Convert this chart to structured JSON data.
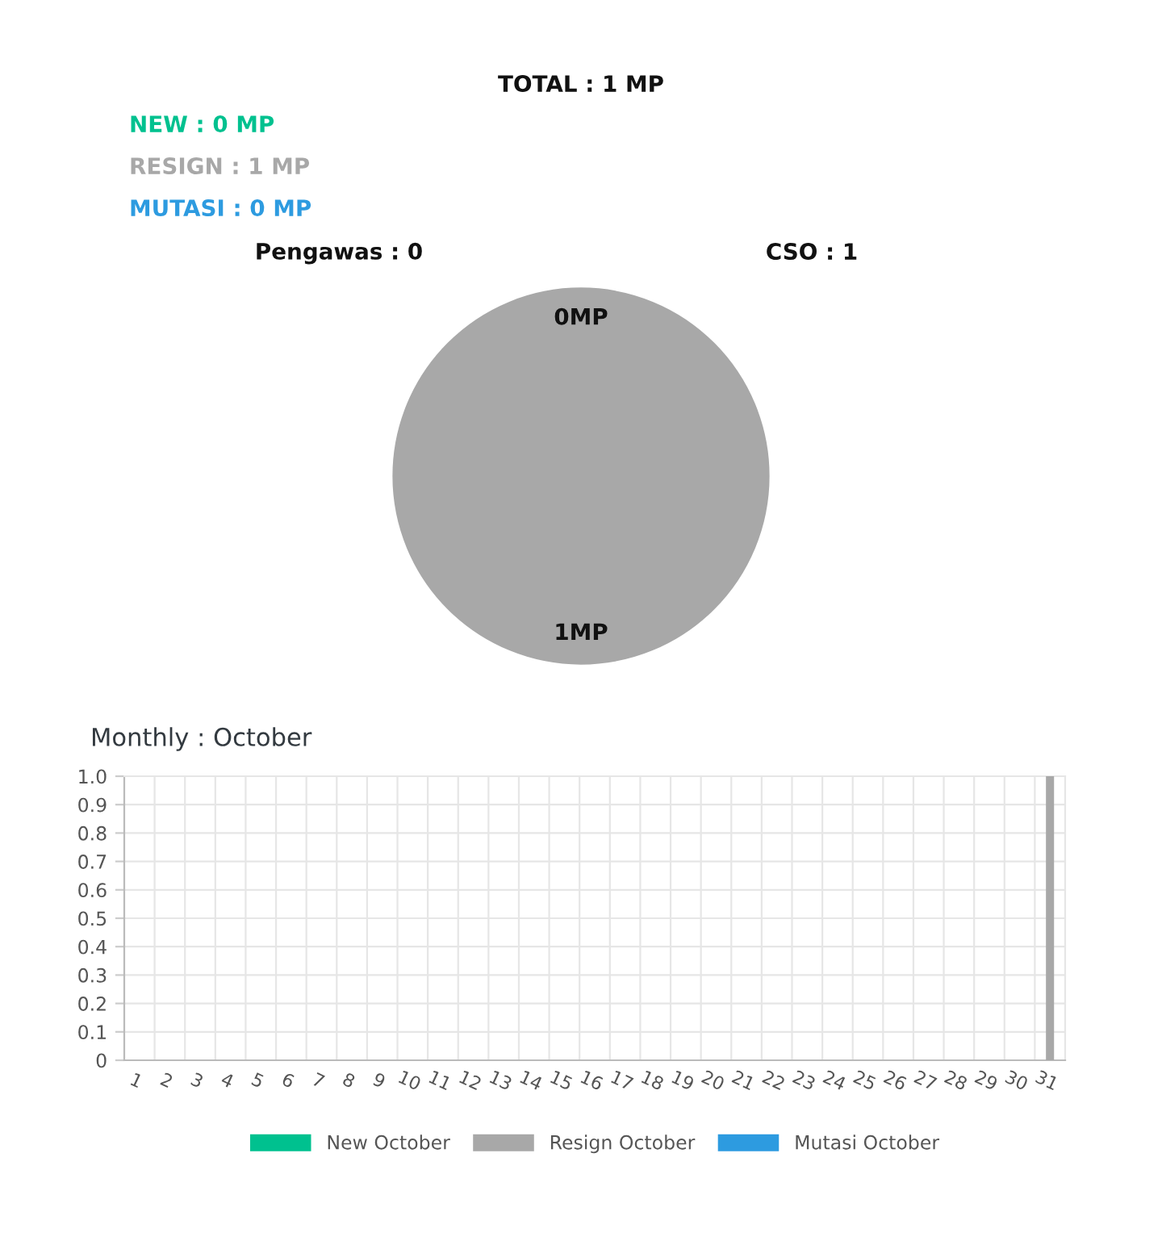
{
  "chart_data": [
    {
      "type": "pie",
      "title": "TOTAL : 1 MP",
      "annotations": [
        "NEW : 0 MP",
        "RESIGN : 1 MP",
        "MUTASI : 0 MP"
      ],
      "categories": [
        "Pengawas : 0",
        "CSO : 1"
      ],
      "values": [
        0,
        1
      ],
      "colors": [
        "#a8a8a8",
        "#a8a8a8"
      ],
      "value_labels": [
        "0MP",
        "1MP"
      ]
    },
    {
      "type": "bar",
      "title": "Monthly : October",
      "categories": [
        "1",
        "2",
        "3",
        "4",
        "5",
        "6",
        "7",
        "8",
        "9",
        "10",
        "11",
        "12",
        "13",
        "14",
        "15",
        "16",
        "17",
        "18",
        "19",
        "20",
        "21",
        "22",
        "23",
        "24",
        "25",
        "26",
        "27",
        "28",
        "29",
        "30",
        "31"
      ],
      "series": [
        {
          "name": "New October",
          "color": "#00c18f",
          "values": [
            0,
            0,
            0,
            0,
            0,
            0,
            0,
            0,
            0,
            0,
            0,
            0,
            0,
            0,
            0,
            0,
            0,
            0,
            0,
            0,
            0,
            0,
            0,
            0,
            0,
            0,
            0,
            0,
            0,
            0,
            0
          ]
        },
        {
          "name": "Resign October",
          "color": "#a8a8a8",
          "values": [
            0,
            0,
            0,
            0,
            0,
            0,
            0,
            0,
            0,
            0,
            0,
            0,
            0,
            0,
            0,
            0,
            0,
            0,
            0,
            0,
            0,
            0,
            0,
            0,
            0,
            0,
            0,
            0,
            0,
            0,
            1
          ]
        },
        {
          "name": "Mutasi October",
          "color": "#2d9be0",
          "values": [
            0,
            0,
            0,
            0,
            0,
            0,
            0,
            0,
            0,
            0,
            0,
            0,
            0,
            0,
            0,
            0,
            0,
            0,
            0,
            0,
            0,
            0,
            0,
            0,
            0,
            0,
            0,
            0,
            0,
            0,
            0
          ]
        }
      ],
      "ylim": [
        0,
        1.0
      ],
      "yticks": [
        0,
        {
          "value": 0.1,
          "label": "0.1"
        },
        {
          "value": 0.2,
          "label": "0.2"
        },
        {
          "value": 0.3,
          "label": "0.3"
        },
        {
          "value": 0.4,
          "label": "0.4"
        },
        {
          "value": 0.5,
          "label": "0.5"
        },
        {
          "value": 0.6,
          "label": "0.6"
        },
        {
          "value": 0.7,
          "label": "0.7"
        },
        {
          "value": 0.8,
          "label": "0.8"
        },
        {
          "value": 0.9,
          "label": "0.9"
        },
        {
          "value": 1.0,
          "label": "1.0"
        }
      ],
      "grid": true,
      "legend": "bottom"
    }
  ]
}
